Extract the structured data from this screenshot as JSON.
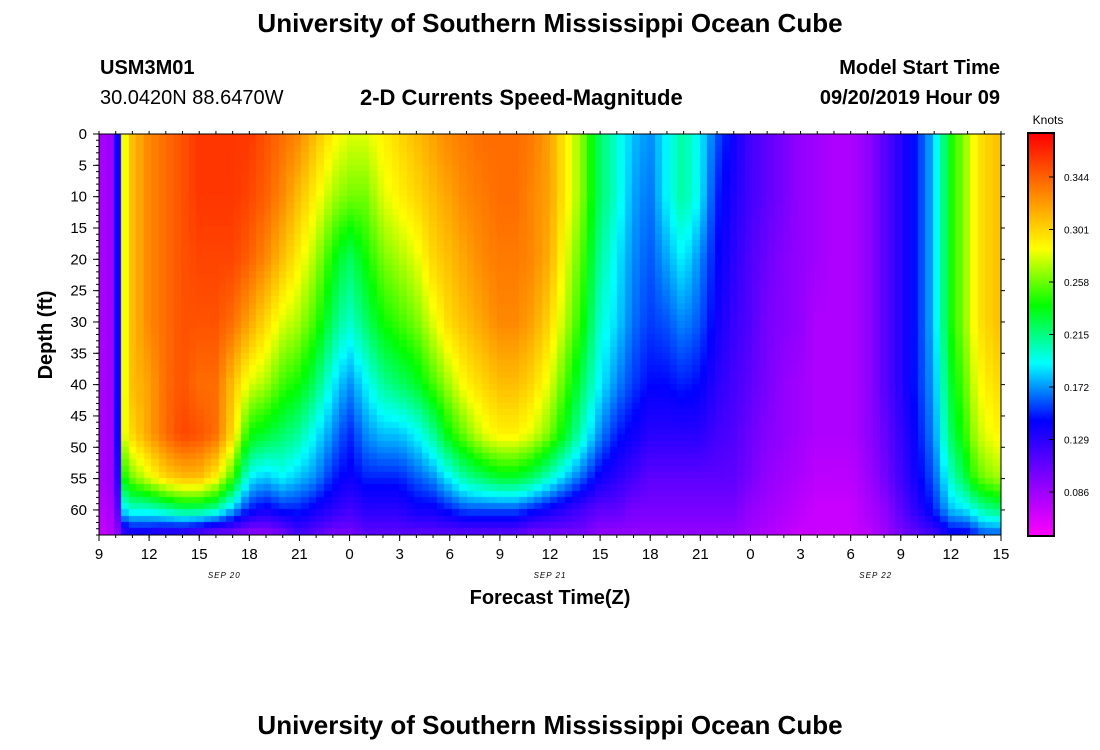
{
  "page": {
    "title_top": "University of Southern Mississippi Ocean Cube",
    "title_bottom": "University of Southern Mississippi Ocean Cube",
    "station_id": "USM3M01",
    "station_coords": "30.0420N 88.6470W",
    "plot_title": "2-D Currents Speed-Magnitude",
    "model_start_label": "Model Start Time",
    "model_start_value": "09/20/2019 Hour 09"
  },
  "chart_data": {
    "type": "heatmap",
    "title": "2-D Currents Speed-Magnitude",
    "xlabel": "Forecast Time(Z)",
    "ylabel": "Depth (ft)",
    "x_ticks": [
      "9",
      "12",
      "15",
      "18",
      "21",
      "0",
      "3",
      "6",
      "9",
      "12",
      "15",
      "18",
      "21",
      "0",
      "3",
      "6",
      "9",
      "12",
      "15"
    ],
    "x_range_hours": [
      0,
      54
    ],
    "date_labels": [
      {
        "text": "SEP 20",
        "hour": 7.5
      },
      {
        "text": "SEP 21",
        "hour": 27
      },
      {
        "text": "SEP 22",
        "hour": 46.5
      }
    ],
    "y_ticks": [
      0,
      5,
      10,
      15,
      20,
      25,
      30,
      35,
      40,
      45,
      50,
      55,
      60
    ],
    "ylim": [
      0,
      64
    ],
    "colorbar": {
      "label": "Knots",
      "ticks": [
        0.086,
        0.129,
        0.172,
        0.215,
        0.258,
        0.301,
        0.344
      ],
      "range": [
        0.05,
        0.38
      ],
      "colors": [
        "#ff00ff",
        "#8000ff",
        "#0000ff",
        "#00ffff",
        "#00ff00",
        "#ffff00",
        "#ff8000",
        "#ff0000"
      ]
    },
    "speed_knots": {
      "hours": [
        0,
        1,
        1.5,
        2,
        3,
        4,
        5,
        6,
        7,
        8,
        9,
        10,
        11,
        12,
        13,
        14,
        15,
        16,
        17,
        18,
        19,
        20,
        21,
        22,
        23,
        24,
        25,
        26,
        27,
        28,
        29,
        30,
        31,
        32,
        33,
        34,
        35,
        36,
        37,
        38,
        39,
        40,
        41,
        42,
        43,
        44,
        45,
        46,
        47,
        48,
        49,
        50,
        51,
        52,
        52.5,
        53,
        54
      ],
      "depths_ft": [
        0,
        10,
        20,
        30,
        40,
        48,
        55,
        60,
        64
      ],
      "grid": [
        [
          0.08,
          0.08,
          0.08,
          0.08,
          0.08,
          0.08,
          0.08,
          0.075,
          0.07
        ],
        [
          0.09,
          0.09,
          0.09,
          0.09,
          0.09,
          0.09,
          0.09,
          0.085,
          0.08
        ],
        [
          0.28,
          0.28,
          0.28,
          0.28,
          0.28,
          0.28,
          0.24,
          0.19,
          0.12
        ],
        [
          0.31,
          0.31,
          0.31,
          0.31,
          0.31,
          0.3,
          0.26,
          0.2,
          0.13
        ],
        [
          0.33,
          0.33,
          0.33,
          0.33,
          0.32,
          0.32,
          0.28,
          0.2,
          0.13
        ],
        [
          0.34,
          0.34,
          0.34,
          0.34,
          0.34,
          0.34,
          0.3,
          0.21,
          0.12
        ],
        [
          0.35,
          0.35,
          0.35,
          0.35,
          0.35,
          0.355,
          0.31,
          0.22,
          0.12
        ],
        [
          0.36,
          0.36,
          0.355,
          0.35,
          0.34,
          0.35,
          0.31,
          0.22,
          0.11
        ],
        [
          0.36,
          0.36,
          0.355,
          0.35,
          0.34,
          0.34,
          0.29,
          0.21,
          0.1
        ],
        [
          0.36,
          0.36,
          0.355,
          0.34,
          0.31,
          0.3,
          0.25,
          0.18,
          0.1
        ],
        [
          0.36,
          0.355,
          0.345,
          0.32,
          0.28,
          0.24,
          0.19,
          0.15,
          0.09
        ],
        [
          0.35,
          0.345,
          0.33,
          0.3,
          0.27,
          0.23,
          0.18,
          0.14,
          0.09
        ],
        [
          0.34,
          0.33,
          0.31,
          0.28,
          0.25,
          0.22,
          0.19,
          0.15,
          0.1
        ],
        [
          0.33,
          0.31,
          0.29,
          0.27,
          0.24,
          0.21,
          0.18,
          0.15,
          0.12
        ],
        [
          0.31,
          0.29,
          0.27,
          0.25,
          0.22,
          0.19,
          0.17,
          0.14,
          0.11
        ],
        [
          0.29,
          0.27,
          0.24,
          0.22,
          0.19,
          0.17,
          0.15,
          0.13,
          0.1
        ],
        [
          0.28,
          0.26,
          0.22,
          0.2,
          0.17,
          0.15,
          0.14,
          0.12,
          0.1
        ],
        [
          0.28,
          0.26,
          0.24,
          0.22,
          0.19,
          0.17,
          0.15,
          0.13,
          0.11
        ],
        [
          0.29,
          0.28,
          0.26,
          0.24,
          0.21,
          0.18,
          0.15,
          0.13,
          0.11
        ],
        [
          0.3,
          0.29,
          0.27,
          0.25,
          0.22,
          0.18,
          0.15,
          0.13,
          0.11
        ],
        [
          0.31,
          0.3,
          0.28,
          0.26,
          0.23,
          0.19,
          0.16,
          0.14,
          0.11
        ],
        [
          0.32,
          0.31,
          0.3,
          0.28,
          0.25,
          0.21,
          0.17,
          0.14,
          0.11
        ],
        [
          0.33,
          0.32,
          0.31,
          0.3,
          0.27,
          0.24,
          0.19,
          0.15,
          0.11
        ],
        [
          0.335,
          0.33,
          0.32,
          0.31,
          0.29,
          0.26,
          0.21,
          0.16,
          0.11
        ],
        [
          0.34,
          0.335,
          0.33,
          0.32,
          0.3,
          0.28,
          0.22,
          0.16,
          0.11
        ],
        [
          0.34,
          0.34,
          0.335,
          0.33,
          0.31,
          0.29,
          0.23,
          0.16,
          0.11
        ],
        [
          0.34,
          0.34,
          0.335,
          0.33,
          0.31,
          0.29,
          0.23,
          0.16,
          0.11
        ],
        [
          0.335,
          0.33,
          0.33,
          0.32,
          0.3,
          0.28,
          0.22,
          0.15,
          0.1
        ],
        [
          0.32,
          0.32,
          0.315,
          0.3,
          0.28,
          0.26,
          0.2,
          0.14,
          0.1
        ],
        [
          0.29,
          0.29,
          0.28,
          0.27,
          0.25,
          0.23,
          0.18,
          0.13,
          0.1
        ],
        [
          0.26,
          0.26,
          0.25,
          0.24,
          0.22,
          0.2,
          0.16,
          0.12,
          0.1
        ],
        [
          0.22,
          0.22,
          0.21,
          0.2,
          0.19,
          0.17,
          0.14,
          0.11,
          0.09
        ],
        [
          0.2,
          0.2,
          0.19,
          0.185,
          0.17,
          0.15,
          0.13,
          0.11,
          0.09
        ],
        [
          0.18,
          0.175,
          0.17,
          0.165,
          0.155,
          0.14,
          0.12,
          0.1,
          0.09
        ],
        [
          0.17,
          0.165,
          0.16,
          0.155,
          0.145,
          0.13,
          0.11,
          0.1,
          0.09
        ],
        [
          0.19,
          0.19,
          0.175,
          0.16,
          0.145,
          0.13,
          0.11,
          0.1,
          0.09
        ],
        [
          0.21,
          0.21,
          0.19,
          0.17,
          0.15,
          0.13,
          0.11,
          0.1,
          0.09
        ],
        [
          0.19,
          0.19,
          0.17,
          0.16,
          0.145,
          0.13,
          0.11,
          0.1,
          0.09
        ],
        [
          0.16,
          0.15,
          0.145,
          0.14,
          0.13,
          0.12,
          0.11,
          0.1,
          0.09
        ],
        [
          0.14,
          0.135,
          0.13,
          0.125,
          0.12,
          0.115,
          0.11,
          0.1,
          0.09
        ],
        [
          0.12,
          0.12,
          0.115,
          0.115,
          0.11,
          0.105,
          0.1,
          0.09,
          0.085
        ],
        [
          0.11,
          0.11,
          0.105,
          0.1,
          0.1,
          0.095,
          0.09,
          0.085,
          0.08
        ],
        [
          0.1,
          0.1,
          0.095,
          0.095,
          0.09,
          0.09,
          0.085,
          0.08,
          0.075
        ],
        [
          0.09,
          0.09,
          0.09,
          0.09,
          0.085,
          0.085,
          0.08,
          0.075,
          0.07
        ],
        [
          0.085,
          0.085,
          0.085,
          0.08,
          0.08,
          0.08,
          0.075,
          0.07,
          0.07
        ],
        [
          0.08,
          0.08,
          0.08,
          0.08,
          0.08,
          0.08,
          0.075,
          0.07,
          0.07
        ],
        [
          0.08,
          0.08,
          0.08,
          0.08,
          0.08,
          0.08,
          0.075,
          0.07,
          0.07
        ],
        [
          0.09,
          0.09,
          0.09,
          0.09,
          0.09,
          0.09,
          0.085,
          0.08,
          0.075
        ],
        [
          0.11,
          0.11,
          0.11,
          0.11,
          0.11,
          0.105,
          0.1,
          0.09,
          0.085
        ],
        [
          0.13,
          0.13,
          0.13,
          0.13,
          0.13,
          0.125,
          0.12,
          0.11,
          0.1
        ],
        [
          0.15,
          0.15,
          0.15,
          0.15,
          0.15,
          0.145,
          0.14,
          0.13,
          0.11
        ],
        [
          0.18,
          0.18,
          0.18,
          0.18,
          0.175,
          0.17,
          0.16,
          0.15,
          0.12
        ],
        [
          0.24,
          0.24,
          0.24,
          0.24,
          0.23,
          0.22,
          0.2,
          0.18,
          0.14
        ],
        [
          0.27,
          0.27,
          0.27,
          0.27,
          0.26,
          0.25,
          0.23,
          0.19,
          0.14
        ],
        [
          0.29,
          0.29,
          0.29,
          0.29,
          0.28,
          0.27,
          0.25,
          0.2,
          0.15
        ],
        [
          0.3,
          0.3,
          0.3,
          0.3,
          0.29,
          0.28,
          0.26,
          0.21,
          0.16
        ],
        [
          0.31,
          0.31,
          0.31,
          0.31,
          0.3,
          0.29,
          0.27,
          0.22,
          0.16
        ]
      ]
    }
  }
}
